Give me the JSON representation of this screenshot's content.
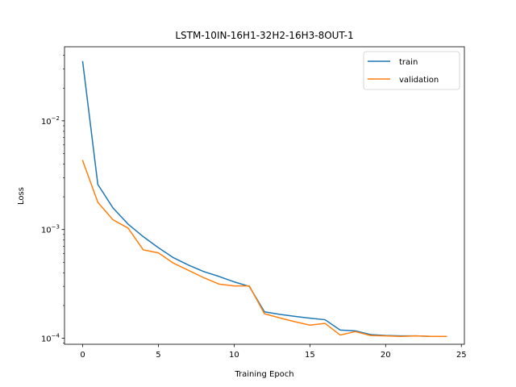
{
  "chart_data": {
    "type": "line",
    "title": "LSTM-10IN-16H1-32H2-16H3-8OUT-1",
    "xlabel": "Training Epoch",
    "ylabel": "Loss",
    "yscale": "log",
    "xlim": [
      -1.2,
      25.2
    ],
    "ylim": [
      8.8e-05,
      0.048
    ],
    "xticks": [
      0,
      5,
      10,
      15,
      20,
      25
    ],
    "xtick_labels": [
      "0",
      "5",
      "10",
      "15",
      "20",
      "25"
    ],
    "yticks": [
      0.0001,
      0.001,
      0.01
    ],
    "ytick_labels": [
      "10",
      "10",
      "10"
    ],
    "ytick_exponents": [
      "−4",
      "−3",
      "−2"
    ],
    "grid": false,
    "legend_position": "top-right",
    "x": [
      0,
      1,
      2,
      3,
      4,
      5,
      6,
      7,
      8,
      9,
      10,
      11,
      12,
      13,
      14,
      15,
      16,
      17,
      18,
      19,
      20,
      21,
      22,
      23,
      24
    ],
    "series": [
      {
        "name": "train",
        "color": "#1f77b4",
        "values": [
          0.035,
          0.0026,
          0.00158,
          0.00112,
          0.00086,
          0.00068,
          0.00055,
          0.00047,
          0.00041,
          0.00037,
          0.00033,
          0.0003,
          0.000175,
          0.000166,
          0.000159,
          0.000153,
          0.000148,
          0.000119,
          0.000117,
          0.000108,
          0.000106,
          0.000105,
          0.000105,
          0.000104,
          0.000104
        ]
      },
      {
        "name": "validation",
        "color": "#ff7f0e",
        "values": [
          0.0043,
          0.00178,
          0.00123,
          0.00103,
          0.00065,
          0.00061,
          0.00049,
          0.00042,
          0.00036,
          0.000315,
          0.000303,
          0.000303,
          0.000168,
          0.000154,
          0.000142,
          0.000132,
          0.000137,
          0.000107,
          0.000115,
          0.000106,
          0.000105,
          0.000104,
          0.000105,
          0.000104,
          0.000104
        ]
      }
    ]
  }
}
